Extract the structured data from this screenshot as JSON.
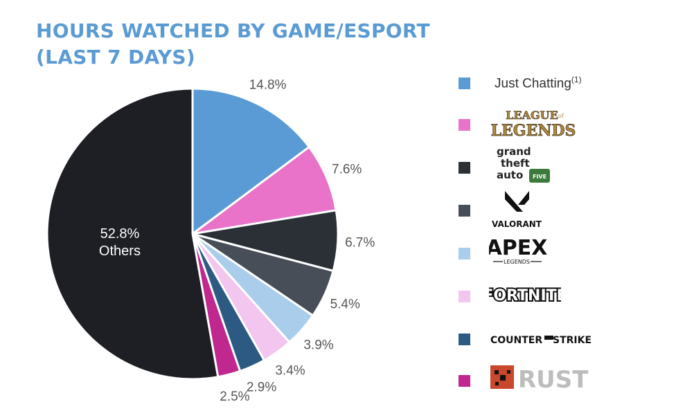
{
  "title": {
    "line1": "HOURS WATCHED BY GAME/ESPORT",
    "line2": "(LAST 7 DAYS)"
  },
  "chart_data": {
    "type": "pie",
    "start_angle_deg": 0,
    "direction": "clockwise",
    "slices": [
      {
        "label": "Just Chatting",
        "value": 14.8,
        "value_label": "14.8%",
        "color": "#5a9bd5"
      },
      {
        "label": "LEAGUE OF LEGENDS",
        "value": 7.6,
        "value_label": "7.6%",
        "color": "#e873c8"
      },
      {
        "label": "grand theft auto",
        "value": 6.7,
        "value_label": "6.7%",
        "color": "#2b2f36"
      },
      {
        "label": "VALORANT",
        "value": 5.4,
        "value_label": "5.4%",
        "color": "#474e58"
      },
      {
        "label": "APEX LEGENDS",
        "value": 3.9,
        "value_label": "3.9%",
        "color": "#a9cdea"
      },
      {
        "label": "FORTNITE",
        "value": 3.4,
        "value_label": "3.4%",
        "color": "#f2c6ee"
      },
      {
        "label": "COUNTER STRIKE",
        "value": 2.9,
        "value_label": "2.9%",
        "color": "#2d5a82"
      },
      {
        "label": "RUST",
        "value": 2.5,
        "value_label": "2.5%",
        "color": "#c0278f"
      },
      {
        "label": "Others",
        "value": 52.8,
        "value_label": "52.8%",
        "color": "#1d1f24"
      }
    ]
  },
  "legend": {
    "just_chatting": "Just Chatting",
    "just_chatting_note": "(1)",
    "lol_line1": "LEAGUE",
    "lol_line2": "LEGENDS",
    "lol_of": "of",
    "gta_line1": "grand",
    "gta_line2": "theft",
    "gta_line3": "auto",
    "gta_five": "FIVE",
    "valorant": "VALORANT",
    "apex": "APEX",
    "apex_sub": "LEGENDS",
    "fortnite": "FORTNITE",
    "cs_left": "COUNTER",
    "cs_right": "STRIKE",
    "rust": "RUST"
  },
  "colors": {
    "title": "#5b9bd3"
  }
}
